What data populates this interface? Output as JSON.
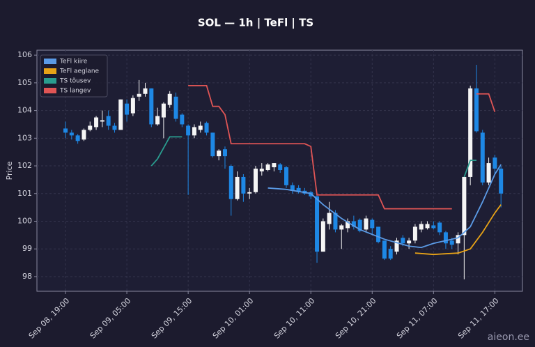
{
  "chart_data": {
    "type": "candlestick",
    "title": "SOL — 1h  |  TeFl  |  TS",
    "y_label": "Price",
    "watermark": "aieon.ee",
    "x": [
      0,
      1,
      2,
      3,
      4,
      5,
      6,
      7,
      8,
      9,
      10,
      11,
      12,
      13,
      14,
      15,
      16,
      17,
      18,
      19,
      20,
      21,
      22,
      23,
      24,
      25,
      26,
      27,
      28,
      29,
      30,
      31,
      32,
      33,
      34,
      35,
      36,
      37,
      38,
      39,
      40,
      41,
      42,
      43,
      44,
      45,
      46,
      47,
      48,
      49,
      50,
      51,
      52,
      53,
      54,
      55,
      56,
      57,
      58,
      59,
      60,
      61,
      62,
      63,
      64,
      65,
      66,
      67,
      68,
      69,
      70,
      71
    ],
    "open": [
      103.35,
      103.2,
      103.1,
      102.95,
      103.3,
      103.4,
      103.6,
      103.8,
      103.45,
      103.3,
      104.25,
      103.9,
      104.5,
      104.6,
      104.8,
      103.5,
      103.75,
      104.2,
      104.5,
      103.85,
      103.45,
      103.1,
      103.3,
      103.55,
      103.2,
      102.35,
      102.6,
      102.0,
      100.8,
      101.6,
      101.0,
      101.05,
      101.8,
      101.85,
      101.95,
      102.05,
      101.95,
      101.3,
      101.2,
      101.1,
      101.05,
      100.9,
      98.9,
      99.9,
      100.3,
      99.7,
      99.75,
      100.0,
      100.05,
      99.7,
      100.05,
      99.8,
      99.3,
      99.0,
      98.9,
      99.4,
      99.2,
      99.3,
      99.7,
      99.75,
      99.85,
      99.95,
      99.6,
      99.3,
      99.2,
      99.5,
      101.6,
      104.8,
      103.2,
      101.4,
      102.3,
      101.9
    ],
    "high": [
      103.6,
      103.3,
      103.15,
      103.35,
      103.6,
      103.8,
      104.0,
      104.0,
      103.55,
      104.4,
      104.4,
      104.55,
      105.1,
      105.0,
      104.8,
      104.1,
      104.3,
      104.7,
      104.65,
      103.9,
      103.5,
      103.5,
      103.6,
      103.6,
      103.2,
      102.6,
      102.7,
      102.05,
      101.8,
      101.7,
      101.2,
      102.0,
      102.1,
      102.1,
      102.1,
      102.1,
      102.0,
      101.4,
      101.3,
      101.2,
      101.1,
      100.95,
      100.1,
      100.7,
      100.4,
      99.9,
      100.1,
      100.2,
      100.1,
      100.2,
      100.1,
      99.8,
      99.3,
      99.1,
      99.4,
      99.5,
      99.4,
      99.9,
      100.0,
      100.0,
      100.0,
      100.0,
      99.65,
      99.4,
      99.6,
      101.6,
      104.9,
      105.65,
      103.3,
      102.3,
      102.4,
      102.0
    ],
    "low": [
      103.0,
      102.95,
      102.8,
      102.9,
      103.25,
      103.3,
      103.4,
      103.3,
      103.2,
      103.3,
      103.6,
      103.8,
      104.35,
      104.5,
      103.4,
      103.45,
      103.0,
      104.1,
      103.6,
      103.4,
      100.95,
      103.0,
      103.2,
      103.1,
      102.3,
      102.2,
      101.9,
      100.2,
      100.75,
      100.7,
      100.8,
      101.0,
      101.65,
      101.8,
      101.8,
      101.75,
      101.2,
      101.0,
      101.0,
      100.95,
      100.8,
      98.5,
      98.9,
      99.7,
      99.6,
      99.0,
      99.6,
      99.7,
      99.6,
      99.6,
      99.5,
      99.2,
      98.6,
      98.6,
      98.8,
      99.1,
      99.0,
      99.2,
      99.6,
      99.7,
      99.7,
      99.5,
      99.0,
      99.0,
      98.8,
      97.9,
      101.3,
      103.2,
      101.3,
      101.3,
      101.7,
      100.5
    ],
    "close": [
      103.2,
      103.1,
      102.9,
      103.3,
      103.45,
      103.75,
      103.65,
      103.45,
      103.3,
      104.4,
      103.85,
      104.45,
      104.6,
      104.8,
      103.5,
      103.8,
      104.25,
      104.6,
      103.7,
      103.5,
      103.1,
      103.4,
      103.45,
      103.2,
      102.35,
      102.55,
      102.35,
      100.8,
      101.6,
      101.0,
      101.05,
      101.9,
      101.9,
      102.05,
      102.1,
      101.85,
      101.3,
      101.1,
      101.05,
      101.0,
      100.9,
      98.9,
      100.0,
      100.3,
      99.7,
      99.85,
      100.0,
      99.8,
      99.65,
      100.1,
      99.75,
      99.25,
      98.65,
      98.65,
      99.3,
      99.2,
      99.3,
      99.8,
      99.9,
      99.9,
      99.75,
      99.6,
      99.2,
      99.15,
      99.5,
      101.6,
      104.8,
      103.25,
      101.4,
      102.1,
      101.9,
      101.0
    ],
    "up_color": "#f5f5f5",
    "down_color": "#1e88e5",
    "series": [
      {
        "name": "TeFl kiire",
        "color": "#5b9be6",
        "x": [
          33,
          36,
          40,
          42,
          45,
          48,
          52,
          56,
          58,
          60,
          64,
          66,
          68,
          70,
          71
        ],
        "values": [
          101.2,
          101.15,
          101.0,
          100.6,
          100.1,
          99.7,
          99.35,
          99.1,
          99.05,
          99.2,
          99.4,
          99.8,
          100.7,
          101.7,
          102.05
        ]
      },
      {
        "name": "TeFl aeglane",
        "color": "#e8a317",
        "x": [
          57,
          60,
          64,
          66,
          68,
          70,
          71
        ],
        "values": [
          98.85,
          98.8,
          98.85,
          99.0,
          99.6,
          100.3,
          100.6
        ]
      },
      {
        "name": "TS tõusev",
        "color": "#2a9d8f",
        "x": [
          14,
          15,
          16,
          17,
          19,
          20,
          65,
          66,
          67
        ],
        "values": [
          102.0,
          102.25,
          102.65,
          103.05,
          103.05,
          null,
          101.6,
          102.2,
          102.2
        ]
      },
      {
        "name": "TS langev",
        "color": "#e05555",
        "x": [
          20,
          23,
          24,
          25,
          26,
          27,
          39,
          40,
          41,
          51,
          52,
          63,
          64,
          67,
          69,
          70
        ],
        "values": [
          104.9,
          104.9,
          104.15,
          104.15,
          103.85,
          102.8,
          102.8,
          102.7,
          100.95,
          100.95,
          100.45,
          100.45,
          null,
          104.6,
          104.6,
          103.95
        ]
      }
    ],
    "xlim": [
      -4.66,
      74.5
    ],
    "ylim": [
      97.47,
      106.18
    ],
    "xticks": [
      {
        "value": 0,
        "label": "Sep 08, 19:00"
      },
      {
        "value": 10,
        "label": "Sep 09, 05:00"
      },
      {
        "value": 20,
        "label": "Sep 09, 15:00"
      },
      {
        "value": 30,
        "label": "Sep 10, 01:00"
      },
      {
        "value": 40,
        "label": "Sep 10, 11:00"
      },
      {
        "value": 50,
        "label": "Sep 10, 21:00"
      },
      {
        "value": 60,
        "label": "Sep 11, 07:00"
      },
      {
        "value": 70,
        "label": "Sep 11, 17:00"
      }
    ],
    "yticks": [
      98,
      99,
      100,
      101,
      102,
      103,
      104,
      105,
      106
    ],
    "grid": true,
    "legend": "upper left"
  }
}
